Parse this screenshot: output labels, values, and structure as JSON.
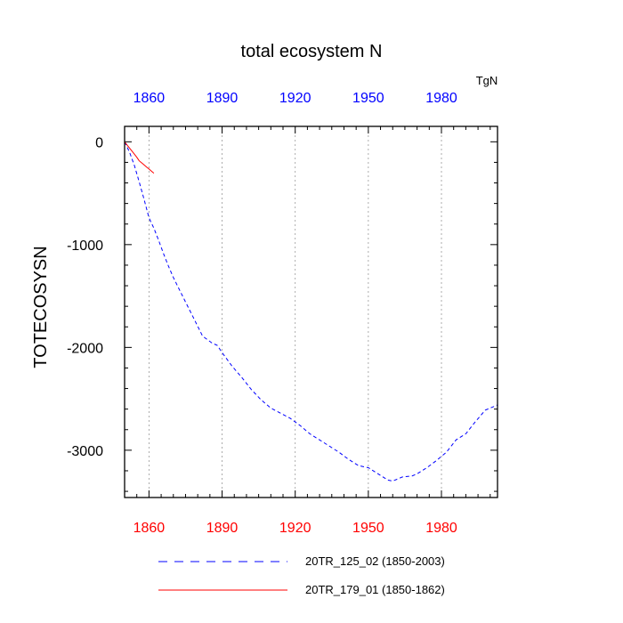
{
  "chart_data": {
    "type": "line",
    "title": "total ecosystem N",
    "units": "TgN",
    "xlabel": "",
    "ylabel": "TOTECOSYSN",
    "xlim": [
      1850,
      2003
    ],
    "ylim": [
      -3460,
      150
    ],
    "x_ticks": [
      1860,
      1890,
      1920,
      1950,
      1980
    ],
    "y_ticks": [
      0,
      -1000,
      -2000,
      -3000
    ],
    "y_minor_step": 200,
    "x_minor_step": 5,
    "grid": "vertical-dotted",
    "colors": {
      "top_axis": "#0000ff",
      "bottom_axis": "#ff0000",
      "series1": "#0000ff",
      "series2": "#ff0000"
    },
    "series": [
      {
        "name": "20TR_125_02 (1850-2003)",
        "style": "dashed",
        "color": "#0000ff",
        "x": [
          1850,
          1852,
          1854,
          1856,
          1858,
          1860,
          1862,
          1864,
          1866,
          1868,
          1870,
          1874,
          1878,
          1882,
          1886,
          1888,
          1890,
          1894,
          1898,
          1902,
          1906,
          1910,
          1914,
          1918,
          1922,
          1926,
          1930,
          1934,
          1938,
          1942,
          1946,
          1950,
          1954,
          1958,
          1960,
          1962,
          1964,
          1968,
          1970,
          1974,
          1978,
          1982,
          1986,
          1990,
          1994,
          1998,
          2000,
          2003
        ],
        "values": [
          0,
          -100,
          -230,
          -390,
          -560,
          -740,
          -840,
          -960,
          -1090,
          -1210,
          -1320,
          -1510,
          -1700,
          -1890,
          -1960,
          -1980,
          -2050,
          -2180,
          -2290,
          -2410,
          -2510,
          -2590,
          -2640,
          -2690,
          -2760,
          -2840,
          -2900,
          -2960,
          -3020,
          -3090,
          -3150,
          -3170,
          -3230,
          -3290,
          -3300,
          -3280,
          -3260,
          -3250,
          -3230,
          -3170,
          -3100,
          -3020,
          -2900,
          -2840,
          -2720,
          -2610,
          -2590,
          -2560
        ]
      },
      {
        "name": "20TR_179_01 (1850-1862)",
        "style": "solid",
        "color": "#ff0000",
        "x": [
          1850,
          1851,
          1852,
          1853,
          1854,
          1855,
          1856,
          1857,
          1858,
          1859,
          1860,
          1861,
          1862
        ],
        "values": [
          0,
          -30,
          -60,
          -90,
          -120,
          -150,
          -185,
          -205,
          -225,
          -245,
          -265,
          -285,
          -305
        ]
      }
    ],
    "legend_placement": "bottom"
  }
}
